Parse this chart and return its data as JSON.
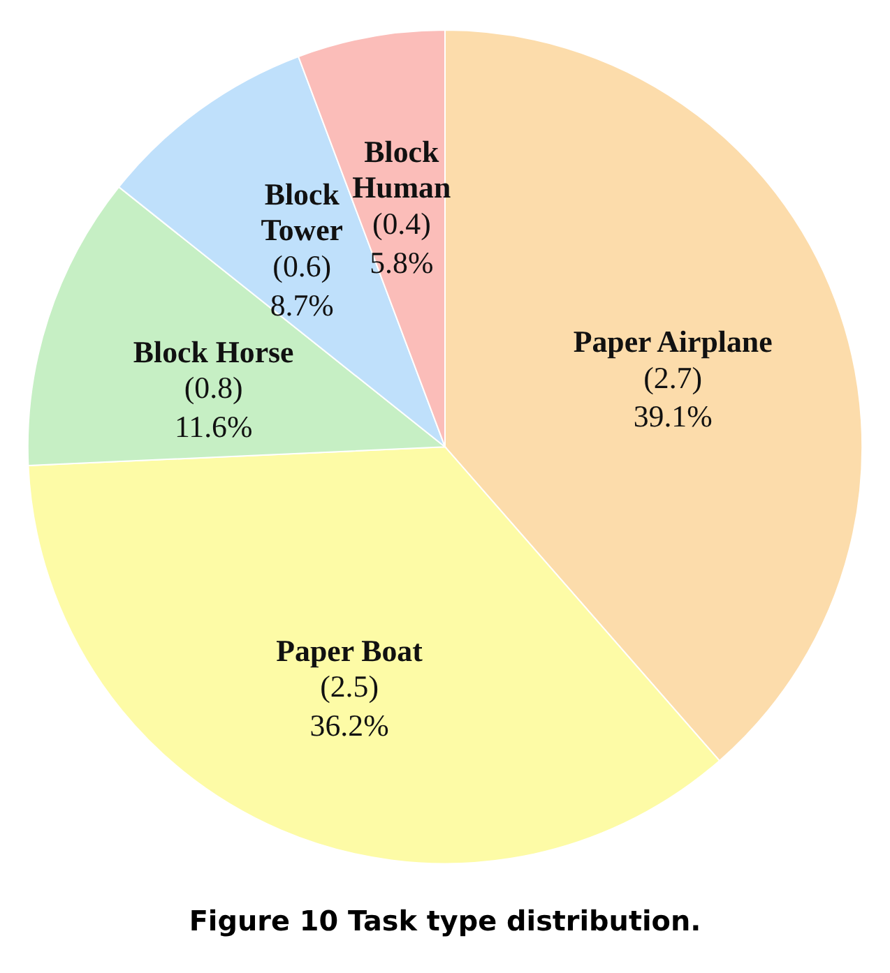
{
  "chart_data": {
    "type": "pie",
    "title": "Figure 10  Task type distribution.",
    "categories": [
      "Paper Airplane",
      "Paper Boat",
      "Block Horse",
      "Block Tower",
      "Block Human"
    ],
    "values": [
      2.7,
      2.5,
      0.8,
      0.6,
      0.4
    ],
    "value_labels": [
      "(2.7)\n39.1%",
      "(2.5)\n36.2%",
      "(0.8)\n11.6%",
      "(0.6)\n8.7%",
      "(0.4)\n5.8%"
    ],
    "colors": [
      "#fcdcab",
      "#fdfba6",
      "#c6efc4",
      "#bfe0fb",
      "#fbbdb9"
    ],
    "legend": false
  }
}
